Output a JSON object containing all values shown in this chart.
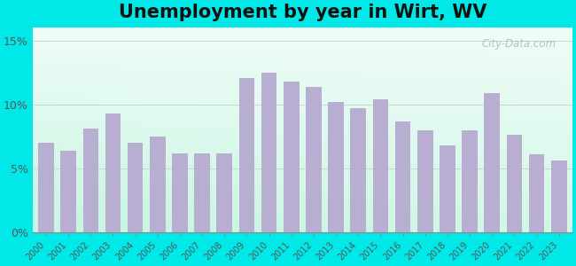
{
  "title": "Unemployment by year in Wirt, WV",
  "years": [
    2000,
    2001,
    2002,
    2003,
    2004,
    2005,
    2006,
    2007,
    2008,
    2009,
    2010,
    2011,
    2012,
    2013,
    2014,
    2015,
    2016,
    2017,
    2018,
    2019,
    2020,
    2021,
    2022,
    2023
  ],
  "values": [
    7.0,
    6.4,
    8.1,
    9.3,
    7.0,
    7.5,
    6.2,
    6.2,
    6.2,
    12.1,
    12.5,
    11.8,
    11.4,
    10.2,
    9.7,
    10.4,
    8.7,
    8.0,
    6.8,
    8.0,
    10.9,
    7.6,
    6.1,
    5.6
  ],
  "bar_color": "#b8aed2",
  "background_outer": "#00e8e8",
  "yticks": [
    0,
    5,
    10,
    15
  ],
  "ylim": [
    0,
    16
  ],
  "title_fontsize": 15,
  "watermark": "City-Data.com"
}
